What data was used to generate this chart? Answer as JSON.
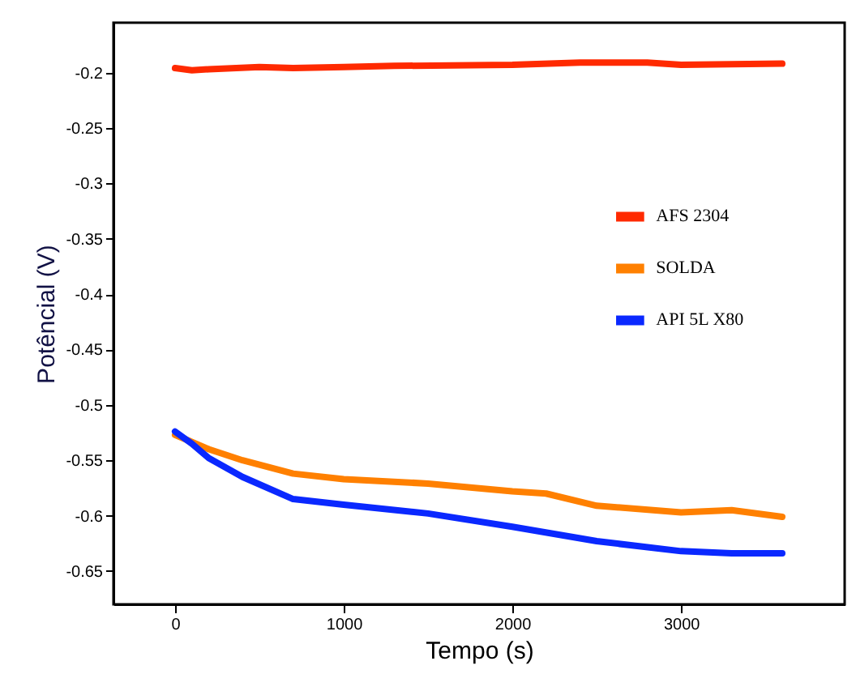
{
  "chart_data": {
    "type": "line",
    "xlabel": "Tempo (s)",
    "ylabel": "Potêncial (V)",
    "xlim": [
      -365,
      3970
    ],
    "xticks": [
      0,
      1000,
      2000,
      3000
    ],
    "ylim": [
      -0.68,
      -0.155
    ],
    "yticks": [
      -0.2,
      -0.25,
      -0.3,
      -0.35,
      -0.4,
      -0.45,
      -0.5,
      -0.55,
      -0.6,
      -0.65
    ],
    "legend": "right",
    "grid": false,
    "marker": "none",
    "line_style": "solid",
    "series": [
      {
        "name": "AFS 2304",
        "color": "#ff2a00",
        "x": [
          0,
          100,
          200,
          500,
          700,
          1000,
          1300,
          2000,
          2400,
          2800,
          3000,
          3600
        ],
        "values": [
          -0.196,
          -0.198,
          -0.197,
          -0.195,
          -0.196,
          -0.195,
          -0.194,
          -0.193,
          -0.191,
          -0.191,
          -0.193,
          -0.192
        ]
      },
      {
        "name": "SOLDA",
        "color": "#ff8000",
        "x": [
          0,
          200,
          400,
          700,
          1000,
          1500,
          2000,
          2200,
          2500,
          3000,
          3300,
          3600
        ],
        "values": [
          -0.527,
          -0.54,
          -0.55,
          -0.562,
          -0.567,
          -0.571,
          -0.578,
          -0.58,
          -0.591,
          -0.597,
          -0.595,
          -0.601
        ]
      },
      {
        "name": "API 5L X80",
        "color": "#0a28ff",
        "x": [
          0,
          100,
          200,
          400,
          700,
          1000,
          1500,
          2000,
          2500,
          3000,
          3300,
          3600
        ],
        "values": [
          -0.524,
          -0.535,
          -0.548,
          -0.565,
          -0.585,
          -0.59,
          -0.598,
          -0.61,
          -0.623,
          -0.632,
          -0.634,
          -0.634
        ]
      }
    ]
  }
}
